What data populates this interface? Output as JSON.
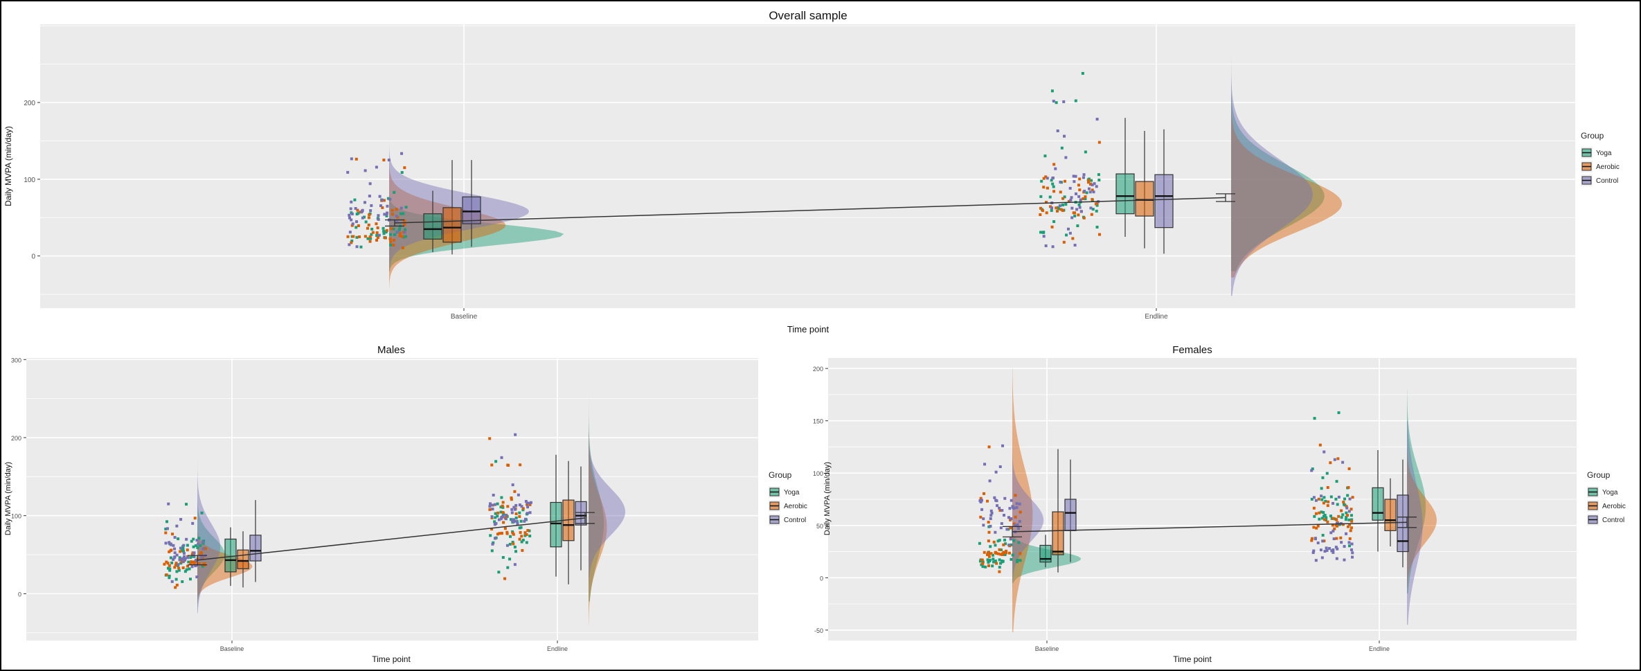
{
  "colors": {
    "Yoga": "#1b9e77",
    "Aerobic": "#d95f02",
    "Control": "#7570b3",
    "panel_bg": "#ebebeb",
    "grid": "#ffffff",
    "frame": "#000000"
  },
  "legend": {
    "title": "Group",
    "items": [
      "Yoga",
      "Aerobic",
      "Control"
    ]
  },
  "chart_data": [
    {
      "type": "raincloud",
      "title": "Overall sample",
      "xlabel": "Time point",
      "ylabel": "Daily MVPA (min/day)",
      "categories": [
        "Baseline",
        "Endline"
      ],
      "ylim": [
        -68,
        302
      ],
      "yticks": [
        0,
        100,
        200
      ],
      "grid": true,
      "legend_position": "right",
      "series": [
        {
          "name": "Yoga",
          "boxplots": [
            {
              "whisker_low": 5,
              "q1": 22,
              "median": 35,
              "q3": 55,
              "whisker_high": 85
            },
            {
              "whisker_low": 25,
              "q1": 55,
              "median": 78,
              "q3": 107,
              "whisker_high": 180
            }
          ]
        },
        {
          "name": "Aerobic",
          "boxplots": [
            {
              "whisker_low": 2,
              "q1": 18,
              "median": 37,
              "q3": 63,
              "whisker_high": 125
            },
            {
              "whisker_low": 10,
              "q1": 52,
              "median": 73,
              "q3": 97,
              "whisker_high": 163
            }
          ]
        },
        {
          "name": "Control",
          "boxplots": [
            {
              "whisker_low": 12,
              "q1": 42,
              "median": 58,
              "q3": 77,
              "whisker_high": 125
            },
            {
              "whisker_low": 3,
              "q1": 37,
              "median": 78,
              "q3": 106,
              "whisker_high": 165
            }
          ]
        }
      ],
      "mean_line": [
        {
          "x": "Baseline",
          "y": 43,
          "ci": [
            39,
            47
          ]
        },
        {
          "x": "Endline",
          "y": 76,
          "ci": [
            71,
            81
          ]
        }
      ],
      "densities": [
        {
          "x": "Baseline",
          "series": "Yoga",
          "center": 28,
          "spread": 14,
          "width": 0.3,
          "min": -20,
          "max": 280
        },
        {
          "x": "Baseline",
          "series": "Aerobic",
          "center": 40,
          "spread": 22,
          "width": 0.2,
          "min": -42,
          "max": 230
        },
        {
          "x": "Baseline",
          "series": "Control",
          "center": 58,
          "spread": 22,
          "width": 0.24,
          "min": -20,
          "max": 230
        },
        {
          "x": "Endline",
          "series": "Yoga",
          "center": 78,
          "spread": 40,
          "width": 0.16,
          "min": -20,
          "max": 270
        },
        {
          "x": "Endline",
          "series": "Aerobic",
          "center": 68,
          "spread": 36,
          "width": 0.19,
          "min": -28,
          "max": 240
        },
        {
          "x": "Endline",
          "series": "Control",
          "center": 80,
          "spread": 45,
          "width": 0.14,
          "min": -52,
          "max": 270
        }
      ]
    },
    {
      "type": "raincloud",
      "title": "Males",
      "xlabel": "Time point",
      "ylabel": "Daily MVPA (min/day)",
      "categories": [
        "Baseline",
        "Endline"
      ],
      "ylim": [
        -60,
        302
      ],
      "yticks": [
        0,
        100,
        200,
        300
      ],
      "grid": true,
      "legend_position": "right",
      "series": [
        {
          "name": "Yoga",
          "boxplots": [
            {
              "whisker_low": 10,
              "q1": 28,
              "median": 43,
              "q3": 70,
              "whisker_high": 85
            },
            {
              "whisker_low": 22,
              "q1": 60,
              "median": 90,
              "q3": 117,
              "whisker_high": 178
            }
          ]
        },
        {
          "name": "Aerobic",
          "boxplots": [
            {
              "whisker_low": 8,
              "q1": 32,
              "median": 42,
              "q3": 56,
              "whisker_high": 80
            },
            {
              "whisker_low": 12,
              "q1": 68,
              "median": 88,
              "q3": 120,
              "whisker_high": 170
            }
          ]
        },
        {
          "name": "Control",
          "boxplots": [
            {
              "whisker_low": 15,
              "q1": 42,
              "median": 55,
              "q3": 75,
              "whisker_high": 120
            },
            {
              "whisker_low": 30,
              "q1": 88,
              "median": 100,
              "q3": 118,
              "whisker_high": 163
            }
          ]
        }
      ],
      "mean_line": [
        {
          "x": "Baseline",
          "y": 43,
          "ci": [
            37,
            49
          ]
        },
        {
          "x": "Endline",
          "y": 97,
          "ci": [
            90,
            104
          ]
        }
      ],
      "densities": [
        {
          "x": "Baseline",
          "series": "Yoga",
          "center": 50,
          "spread": 22,
          "width": 0.18,
          "min": -25,
          "max": 280
        },
        {
          "x": "Baseline",
          "series": "Aerobic",
          "center": 35,
          "spread": 14,
          "width": 0.36,
          "min": -30,
          "max": 110
        },
        {
          "x": "Baseline",
          "series": "Control",
          "center": 60,
          "spread": 30,
          "width": 0.15,
          "min": -25,
          "max": 260
        },
        {
          "x": "Endline",
          "series": "Yoga",
          "center": 90,
          "spread": 45,
          "width": 0.1,
          "min": -10,
          "max": 270
        },
        {
          "x": "Endline",
          "series": "Aerobic",
          "center": 85,
          "spread": 40,
          "width": 0.12,
          "min": -40,
          "max": 250
        },
        {
          "x": "Endline",
          "series": "Control",
          "center": 105,
          "spread": 30,
          "width": 0.24,
          "min": 0,
          "max": 260
        }
      ]
    },
    {
      "type": "raincloud",
      "title": "Females",
      "xlabel": "Time point",
      "ylabel": "Daily MVPA (min/day)",
      "categories": [
        "Baseline",
        "Endline"
      ],
      "ylim": [
        -60,
        210
      ],
      "yticks": [
        -50,
        0,
        50,
        100,
        150,
        200
      ],
      "grid": true,
      "legend_position": "right",
      "series": [
        {
          "name": "Yoga",
          "boxplots": [
            {
              "whisker_low": 10,
              "q1": 15,
              "median": 18,
              "q3": 31,
              "whisker_high": 41
            },
            {
              "whisker_low": 25,
              "q1": 55,
              "median": 62,
              "q3": 86,
              "whisker_high": 122
            }
          ]
        },
        {
          "name": "Aerobic",
          "boxplots": [
            {
              "whisker_low": 5,
              "q1": 22,
              "median": 25,
              "q3": 63,
              "whisker_high": 123
            },
            {
              "whisker_low": 30,
              "q1": 45,
              "median": 55,
              "q3": 75,
              "whisker_high": 95
            }
          ]
        },
        {
          "name": "Control",
          "boxplots": [
            {
              "whisker_low": 15,
              "q1": 45,
              "median": 62,
              "q3": 75,
              "whisker_high": 113
            },
            {
              "whisker_low": 10,
              "q1": 25,
              "median": 35,
              "q3": 79,
              "whisker_high": 113
            }
          ]
        }
      ],
      "mean_line": [
        {
          "x": "Baseline",
          "y": 44,
          "ci": [
            39,
            49
          ]
        },
        {
          "x": "Endline",
          "y": 53,
          "ci": [
            48,
            58
          ]
        }
      ],
      "densities": [
        {
          "x": "Baseline",
          "series": "Yoga",
          "center": 18,
          "spread": 8,
          "width": 0.44,
          "min": -5,
          "max": 140
        },
        {
          "x": "Baseline",
          "series": "Aerobic",
          "center": 60,
          "spread": 45,
          "width": 0.13,
          "min": -52,
          "max": 200
        },
        {
          "x": "Baseline",
          "series": "Control",
          "center": 55,
          "spread": 20,
          "width": 0.2,
          "min": -20,
          "max": 175
        },
        {
          "x": "Endline",
          "series": "Yoga",
          "center": 68,
          "spread": 35,
          "width": 0.12,
          "min": -15,
          "max": 180
        },
        {
          "x": "Endline",
          "series": "Aerobic",
          "center": 55,
          "spread": 22,
          "width": 0.19,
          "min": -10,
          "max": 160
        },
        {
          "x": "Endline",
          "series": "Control",
          "center": 50,
          "spread": 40,
          "width": 0.1,
          "min": -45,
          "max": 150
        }
      ]
    }
  ]
}
